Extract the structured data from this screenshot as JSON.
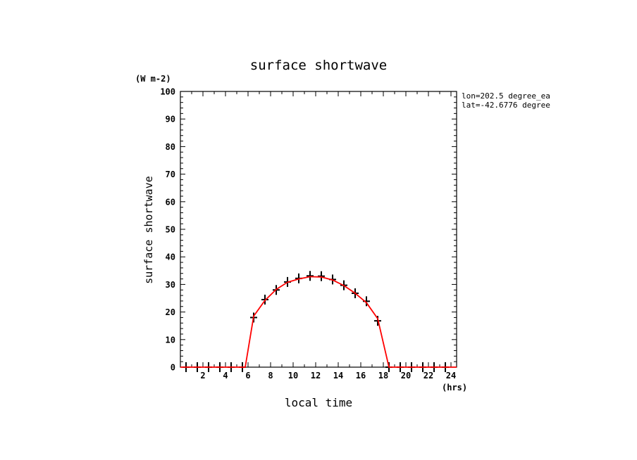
{
  "chart_data": {
    "type": "line",
    "title": "surface shortwave",
    "xlabel": "local time",
    "ylabel": "surface shortwave",
    "yunit": "(W m-2)",
    "xunit": "(hrs)",
    "xlim": [
      0,
      24.5
    ],
    "ylim": [
      0,
      100
    ],
    "xticks": [
      2,
      4,
      6,
      8,
      10,
      12,
      14,
      16,
      18,
      20,
      22,
      24
    ],
    "yticks": [
      0,
      10,
      20,
      30,
      40,
      50,
      60,
      70,
      80,
      90,
      100
    ],
    "annotations": [
      "lon=202.5 degree_ea",
      "lat=-42.6776 degree"
    ],
    "series": [
      {
        "style": "line",
        "color": "#ff0000",
        "x": [
          0,
          1,
          2,
          3,
          4,
          5,
          5.75,
          6.5,
          7.5,
          8.5,
          9.5,
          10.5,
          11.5,
          12.5,
          13.5,
          14.5,
          15.5,
          16.5,
          17.5,
          18.5,
          19,
          20,
          21,
          22,
          23,
          24,
          24.5
        ],
        "y": [
          0,
          0,
          0,
          0,
          0,
          0,
          0,
          18.5,
          24.2,
          28.2,
          30.8,
          32.0,
          32.8,
          32.7,
          31.6,
          29.6,
          26.8,
          23.4,
          17.6,
          0,
          0,
          0,
          0,
          0,
          0,
          0,
          0
        ]
      },
      {
        "style": "marker",
        "color": "#000000",
        "x": [
          0.5,
          1.5,
          2.5,
          3.5,
          4.5,
          5.5,
          6.5,
          7.5,
          8.5,
          9.5,
          10.5,
          11.5,
          12.5,
          13.5,
          14.5,
          15.5,
          16.5,
          17.5,
          18.5,
          19.5,
          20.5,
          21.5,
          22.5,
          23.5
        ],
        "y": [
          0,
          0,
          0,
          0,
          0,
          0,
          18.0,
          24.5,
          28.0,
          30.9,
          32.2,
          33.1,
          33.0,
          31.8,
          29.7,
          26.8,
          23.9,
          16.8,
          0,
          0,
          0,
          0,
          0,
          0
        ]
      }
    ]
  }
}
